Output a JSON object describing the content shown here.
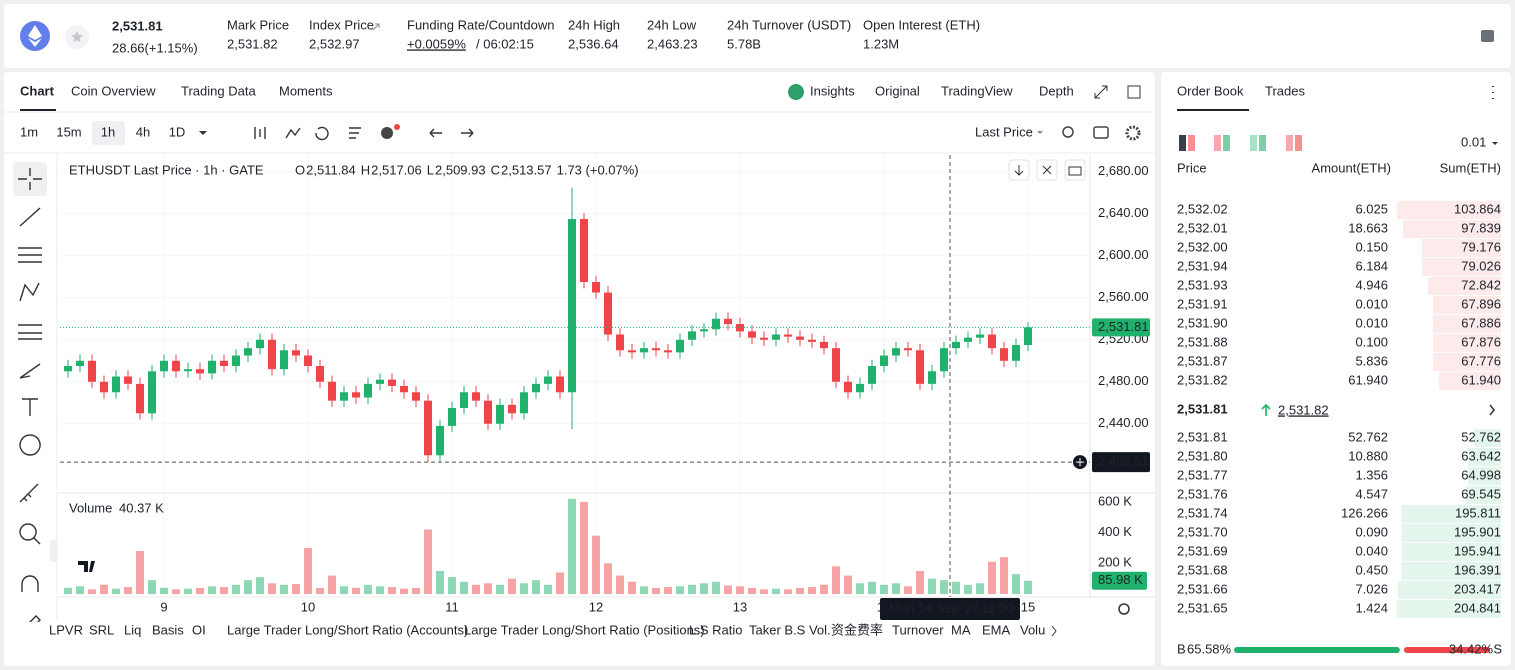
{
  "header": {
    "symbol_price": "2,531.81",
    "change": "28.66(+1.15%)",
    "stats": [
      {
        "label": "Mark Price",
        "value": "2,531.82"
      },
      {
        "label": "Index Price",
        "value": "2,532.97"
      },
      {
        "label": "Funding Rate/Countdown",
        "value": "+0.0059%",
        "countdown": "/ 06:02:15"
      },
      {
        "label": "24h High",
        "value": "2,536.64"
      },
      {
        "label": "24h Low",
        "value": "2,463.23"
      },
      {
        "label": "24h Turnover (USDT)",
        "value": "5.78B"
      },
      {
        "label": "Open Interest (ETH)",
        "value": "1.23M"
      }
    ]
  },
  "tabs": [
    "Chart",
    "Coin Overview",
    "Trading Data",
    "Moments"
  ],
  "views": [
    "Insights",
    "Original",
    "TradingView",
    "Depth"
  ],
  "intervals": [
    "1m",
    "15m",
    "1h",
    "4h",
    "1D"
  ],
  "price_type": "Last Price",
  "indicators": [
    "LPVR",
    "SRL",
    "Liq",
    "Basis",
    "OI",
    "Large Trader Long/Short Ratio (Accounts)",
    "Large Trader Long/Short Ratio (Positions)",
    "L.S Ratio",
    "Taker B.S Vol.",
    "资金费率",
    "Turnover",
    "MA",
    "EMA",
    "Volu"
  ],
  "chart_data": {
    "type": "candlestick",
    "legend": {
      "title": "ETHUSDT Last Price · 1h · GATE",
      "ohlc": [
        {
          "key": "O",
          "value": "2,511.84"
        },
        {
          "key": "H",
          "value": "2,517.06"
        },
        {
          "key": "L",
          "value": "2,509.93"
        },
        {
          "key": "C",
          "value": "2,513.57"
        }
      ],
      "change": "1.73 (+0.07%)"
    },
    "up_color": "#20b26c",
    "down_color": "#ef454a",
    "grid": true,
    "xlim": [
      -17,
      154
    ],
    "xticks": [
      {
        "value": 0,
        "label": "9"
      },
      {
        "value": 24,
        "label": "10"
      },
      {
        "value": 48,
        "label": "11"
      },
      {
        "value": 72,
        "label": "12"
      },
      {
        "value": 96,
        "label": "13"
      },
      {
        "value": 120,
        "label": "14"
      },
      {
        "value": 144,
        "label": "15"
      }
    ],
    "ylim": [
      2375,
      2696
    ],
    "yticks": [
      {
        "value": 2440,
        "label": "2,440.00"
      },
      {
        "value": 2480,
        "label": "2,480.00"
      },
      {
        "value": 2520,
        "label": "2,520.00"
      },
      {
        "value": 2560,
        "label": "2,560.00"
      },
      {
        "value": 2600,
        "label": "2,600.00"
      },
      {
        "value": 2640,
        "label": "2,640.00"
      },
      {
        "value": 2680,
        "label": "2,680.00"
      }
    ],
    "x": [
      -16,
      -14,
      -12,
      -10,
      -8,
      -6,
      -4,
      -2,
      0,
      2,
      4,
      6,
      8,
      10,
      12,
      14,
      16,
      18,
      20,
      22,
      24,
      26,
      28,
      30,
      32,
      34,
      36,
      38,
      40,
      42,
      44,
      46,
      48,
      50,
      52,
      54,
      56,
      58,
      60,
      62,
      64,
      66,
      68,
      70,
      72,
      74,
      76,
      78,
      80,
      82,
      84,
      86,
      88,
      90,
      92,
      94,
      96,
      98,
      100,
      102,
      104,
      106,
      108,
      110,
      112,
      114,
      116,
      118,
      120,
      122,
      124,
      126,
      128,
      130,
      132,
      134,
      136,
      138,
      140,
      142,
      144
    ],
    "open": [
      2490,
      2495,
      2500,
      2480,
      2470,
      2485,
      2478,
      2450,
      2490,
      2500,
      2490,
      2492,
      2488,
      2500,
      2495,
      2505,
      2512,
      2520,
      2492,
      2510,
      2505,
      2495,
      2480,
      2462,
      2470,
      2465,
      2478,
      2482,
      2476,
      2470,
      2462,
      2410,
      2438,
      2455,
      2470,
      2462,
      2440,
      2458,
      2450,
      2470,
      2478,
      2485,
      2470,
      2635,
      2575,
      2565,
      2525,
      2510,
      2508,
      2512,
      2510,
      2508,
      2520,
      2528,
      2530,
      2540,
      2535,
      2528,
      2522,
      2520,
      2525,
      2523,
      2520,
      2518,
      2512,
      2480,
      2470,
      2478,
      2495,
      2505,
      2512,
      2510,
      2478,
      2490,
      2512,
      2518,
      2522,
      2525,
      2512,
      2500,
      2515
    ],
    "high": [
      2501,
      2506,
      2506,
      2486,
      2491,
      2491,
      2484,
      2496,
      2506,
      2506,
      2498,
      2498,
      2506,
      2506,
      2511,
      2518,
      2526,
      2526,
      2516,
      2516,
      2511,
      2501,
      2486,
      2476,
      2476,
      2484,
      2488,
      2488,
      2482,
      2476,
      2468,
      2444,
      2461,
      2476,
      2476,
      2468,
      2464,
      2464,
      2476,
      2484,
      2491,
      2491,
      2665,
      2641,
      2581,
      2571,
      2531,
      2516,
      2518,
      2518,
      2516,
      2526,
      2534,
      2536,
      2546,
      2546,
      2541,
      2534,
      2528,
      2531,
      2531,
      2529,
      2526,
      2524,
      2518,
      2486,
      2484,
      2501,
      2511,
      2518,
      2518,
      2516,
      2496,
      2518,
      2524,
      2528,
      2531,
      2531,
      2518,
      2521,
      2537
    ],
    "low": [
      2484,
      2489,
      2474,
      2464,
      2464,
      2472,
      2444,
      2444,
      2484,
      2484,
      2484,
      2482,
      2482,
      2489,
      2489,
      2499,
      2506,
      2486,
      2486,
      2499,
      2489,
      2474,
      2456,
      2456,
      2459,
      2459,
      2472,
      2470,
      2464,
      2456,
      2403.51,
      2404,
      2432,
      2449,
      2456,
      2434,
      2434,
      2444,
      2444,
      2464,
      2472,
      2464,
      2435,
      2569,
      2559,
      2519,
      2504,
      2502,
      2502,
      2504,
      2502,
      2502,
      2514,
      2522,
      2524,
      2529,
      2522,
      2516,
      2514,
      2514,
      2517,
      2514,
      2512,
      2506,
      2474,
      2464,
      2464,
      2472,
      2489,
      2499,
      2504,
      2472,
      2472,
      2484,
      2506,
      2512,
      2516,
      2506,
      2494,
      2494,
      2509
    ],
    "close": [
      2495,
      2500,
      2480,
      2470,
      2485,
      2478,
      2450,
      2490,
      2500,
      2490,
      2492,
      2488,
      2500,
      2495,
      2505,
      2512,
      2520,
      2492,
      2510,
      2505,
      2495,
      2480,
      2462,
      2470,
      2465,
      2478,
      2482,
      2476,
      2470,
      2462,
      2410,
      2438,
      2455,
      2470,
      2462,
      2440,
      2458,
      2450,
      2470,
      2478,
      2485,
      2470,
      2635,
      2575,
      2565,
      2525,
      2510,
      2508,
      2512,
      2510,
      2508,
      2520,
      2528,
      2530,
      2540,
      2535,
      2528,
      2522,
      2520,
      2525,
      2523,
      2520,
      2518,
      2512,
      2480,
      2470,
      2478,
      2495,
      2505,
      2512,
      2510,
      2478,
      2490,
      2512,
      2518,
      2522,
      2525,
      2512,
      2500,
      2515,
      2531.81
    ],
    "last_price": {
      "value": 2531.81,
      "label": "2,531.81"
    },
    "crosshair": {
      "x": 131,
      "date": "Mon 14 Sep '26",
      "time": "11:00",
      "price": {
        "value": 2403.51,
        "label": "2,403.51"
      }
    },
    "volume": {
      "label": "Volume",
      "legend_value": "40.37 K",
      "ylim": [
        0,
        645
      ],
      "yticks": [
        {
          "value": 200,
          "label": "200 K"
        },
        {
          "value": 400,
          "label": "400 K"
        },
        {
          "value": 600,
          "label": "600 K"
        }
      ],
      "last": {
        "value": 85.98,
        "label": "85.98 K"
      },
      "values": [
        40,
        50,
        30,
        60,
        35,
        45,
        280,
        90,
        40,
        30,
        35,
        40,
        50,
        45,
        60,
        90,
        110,
        70,
        60,
        65,
        300,
        40,
        120,
        50,
        40,
        60,
        50,
        45,
        35,
        40,
        420,
        150,
        110,
        80,
        60,
        70,
        60,
        100,
        70,
        90,
        60,
        140,
        620,
        600,
        380,
        200,
        120,
        80,
        50,
        40,
        45,
        50,
        60,
        70,
        80,
        55,
        50,
        40,
        30,
        35,
        30,
        40,
        45,
        60,
        180,
        120,
        70,
        80,
        60,
        70,
        50,
        150,
        100,
        90,
        80,
        60,
        70,
        210,
        240,
        130,
        85.98
      ]
    }
  },
  "order_book": {
    "tabs": [
      "Order Book",
      "Trades"
    ],
    "precision": "0.01",
    "columns": [
      "Price",
      "Amount(ETH)",
      "Sum(ETH)"
    ],
    "asks": [
      {
        "price": "2,532.02",
        "amount": "6.025",
        "sum": 103.864
      },
      {
        "price": "2,532.01",
        "amount": "18.663",
        "sum": 97.839
      },
      {
        "price": "2,532.00",
        "amount": "0.150",
        "sum": 79.176
      },
      {
        "price": "2,531.94",
        "amount": "6.184",
        "sum": 79.026
      },
      {
        "price": "2,531.93",
        "amount": "4.946",
        "sum": 72.842
      },
      {
        "price": "2,531.91",
        "amount": "0.010",
        "sum": 67.896
      },
      {
        "price": "2,531.90",
        "amount": "0.010",
        "sum": 67.886
      },
      {
        "price": "2,531.88",
        "amount": "0.100",
        "sum": 67.876
      },
      {
        "price": "2,531.87",
        "amount": "5.836",
        "sum": 67.776
      },
      {
        "price": "2,531.82",
        "amount": "61.940",
        "sum": {
          "value": 61.94,
          "label": "61.940"
        }
      }
    ],
    "last": "2,531.81",
    "mark": "2,531.82",
    "bids": [
      {
        "price": "2,531.81",
        "amount": "52.762",
        "sum": 52.762
      },
      {
        "price": "2,531.80",
        "amount": "10.880",
        "sum": 63.642
      },
      {
        "price": "2,531.77",
        "amount": "1.356",
        "sum": 64.998
      },
      {
        "price": "2,531.76",
        "amount": "4.547",
        "sum": 69.545
      },
      {
        "price": "2,531.74",
        "amount": "126.266",
        "sum": 195.811
      },
      {
        "price": "2,531.70",
        "amount": "0.090",
        "sum": 195.901
      },
      {
        "price": "2,531.69",
        "amount": "0.040",
        "sum": 195.941
      },
      {
        "price": "2,531.68",
        "amount": "0.450",
        "sum": 196.391
      },
      {
        "price": "2,531.66",
        "amount": "7.026",
        "sum": 203.417
      },
      {
        "price": "2,531.65",
        "amount": "1.424",
        "sum": 204.841
      }
    ],
    "buy_label": "B",
    "sell_label": "S",
    "buy": {
      "value": 65.58,
      "label": "65.58%"
    },
    "sell": {
      "value": 34.42,
      "label": "34.42%"
    }
  }
}
